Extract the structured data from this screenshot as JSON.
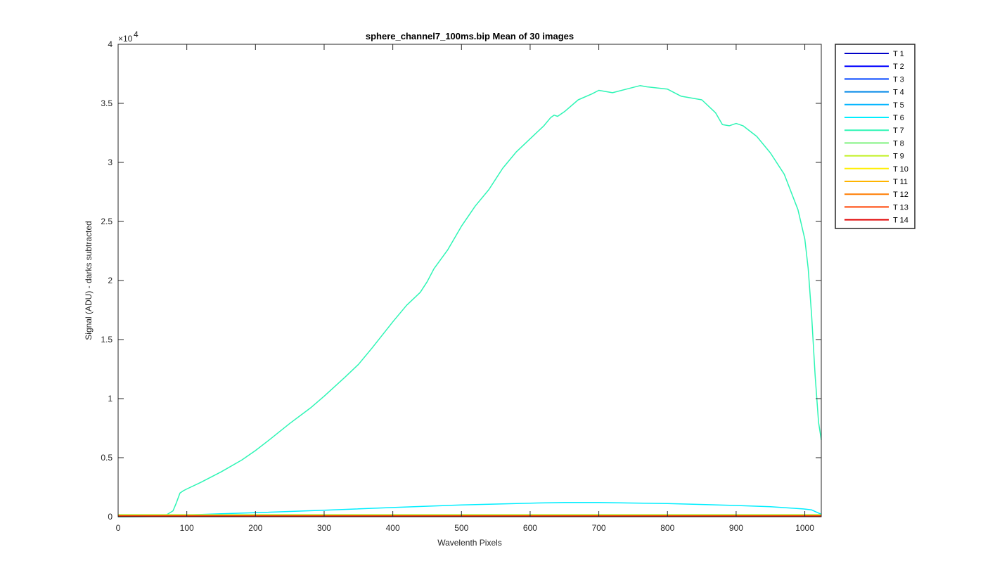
{
  "chart_data": {
    "type": "line",
    "title": "sphere_channel7_100ms.bip  Mean of 30 images",
    "xlabel": "Wavelenth Pixels",
    "ylabel": "Signal (ADU) - darks subtracted",
    "y_exponent_label": "×10",
    "y_exponent": "4",
    "xlim": [
      0,
      1024
    ],
    "ylim": [
      0,
      40000
    ],
    "x_ticks": [
      0,
      100,
      200,
      300,
      400,
      500,
      600,
      700,
      800,
      900,
      1000
    ],
    "y_ticks": [
      0,
      5000,
      10000,
      15000,
      20000,
      25000,
      30000,
      35000,
      40000
    ],
    "y_tick_labels": [
      "0",
      "0.5",
      "1",
      "1.5",
      "2",
      "2.5",
      "3",
      "3.5",
      "4"
    ],
    "legend_position": "outside-right-top",
    "grid": false,
    "series": [
      {
        "name": "T 1",
        "color": "#0000c8",
        "x": [
          0,
          1024
        ],
        "y": [
          20,
          20
        ]
      },
      {
        "name": "T 2",
        "color": "#0000ff",
        "x": [
          0,
          1024
        ],
        "y": [
          25,
          25
        ]
      },
      {
        "name": "T 3",
        "color": "#0044ff",
        "x": [
          0,
          1024
        ],
        "y": [
          30,
          30
        ]
      },
      {
        "name": "T 4",
        "color": "#0088e8",
        "x": [
          0,
          1024
        ],
        "y": [
          35,
          35
        ]
      },
      {
        "name": "T 5",
        "color": "#00b4ff",
        "x": [
          0,
          1024
        ],
        "y": [
          45,
          45
        ]
      },
      {
        "name": "T 6",
        "color": "#00eeff",
        "x": [
          0,
          50,
          80,
          100,
          150,
          200,
          300,
          400,
          500,
          600,
          650,
          700,
          800,
          900,
          950,
          1000,
          1010,
          1024
        ],
        "y": [
          0,
          20,
          80,
          150,
          250,
          340,
          550,
          780,
          1000,
          1150,
          1200,
          1200,
          1120,
          950,
          850,
          650,
          580,
          200
        ]
      },
      {
        "name": "T 7",
        "color": "#2ef5b5",
        "x": [
          0,
          50,
          70,
          80,
          85,
          90,
          95,
          100,
          120,
          150,
          180,
          200,
          220,
          250,
          280,
          300,
          330,
          350,
          370,
          400,
          420,
          440,
          450,
          460,
          480,
          500,
          520,
          540,
          560,
          580,
          600,
          620,
          630,
          635,
          640,
          650,
          670,
          690,
          700,
          720,
          740,
          760,
          770,
          800,
          820,
          850,
          870,
          880,
          890,
          900,
          910,
          930,
          950,
          970,
          990,
          1000,
          1005,
          1010,
          1015,
          1020,
          1024
        ],
        "y": [
          0,
          20,
          150,
          500,
          1200,
          2000,
          2200,
          2350,
          2900,
          3800,
          4800,
          5600,
          6500,
          7900,
          9200,
          10200,
          11800,
          12900,
          14300,
          16500,
          17900,
          19000,
          19900,
          21000,
          22600,
          24600,
          26300,
          27700,
          29500,
          30900,
          32000,
          33100,
          33800,
          34000,
          33900,
          34300,
          35300,
          35800,
          36100,
          35900,
          36200,
          36500,
          36400,
          36200,
          35600,
          35300,
          34200,
          33200,
          33100,
          33300,
          33100,
          32200,
          30800,
          29000,
          26000,
          23500,
          21000,
          17000,
          12000,
          8000,
          6500
        ]
      },
      {
        "name": "T 8",
        "color": "#7ff27f",
        "x": [
          0,
          1024
        ],
        "y": [
          180,
          180
        ]
      },
      {
        "name": "T 9",
        "color": "#c0f020",
        "x": [
          0,
          1024
        ],
        "y": [
          150,
          150
        ]
      },
      {
        "name": "T 10",
        "color": "#ffee00",
        "x": [
          0,
          1024
        ],
        "y": [
          120,
          120
        ]
      },
      {
        "name": "T 11",
        "color": "#ffb400",
        "x": [
          0,
          1024
        ],
        "y": [
          100,
          100
        ]
      },
      {
        "name": "T 12",
        "color": "#ff7c00",
        "x": [
          0,
          1024
        ],
        "y": [
          80,
          80
        ]
      },
      {
        "name": "T 13",
        "color": "#ff4000",
        "x": [
          0,
          1024
        ],
        "y": [
          60,
          60
        ]
      },
      {
        "name": "T 14",
        "color": "#e00000",
        "x": [
          0,
          1024
        ],
        "y": [
          50,
          50
        ]
      }
    ]
  }
}
